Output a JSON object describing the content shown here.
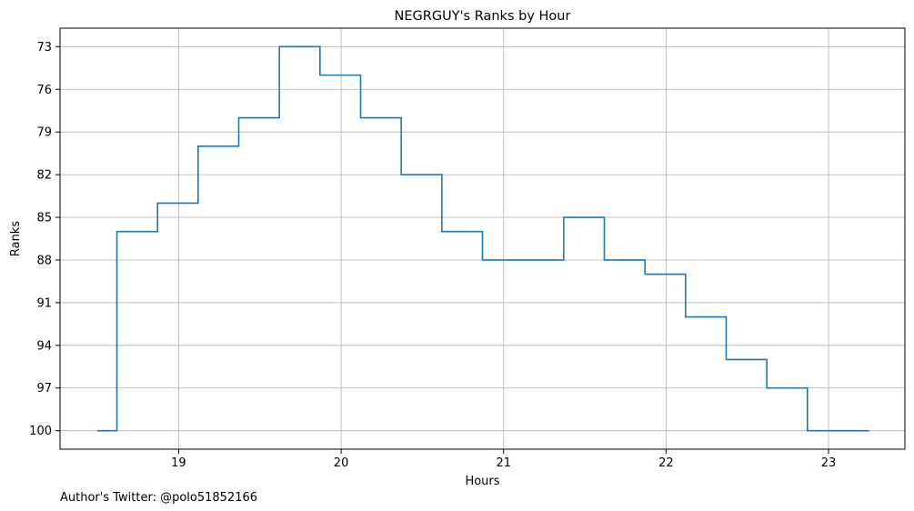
{
  "chart_data": {
    "type": "line",
    "step": "post",
    "title": "NEGRGUY's Ranks by Hour",
    "xlabel": "Hours",
    "ylabel": "Ranks",
    "xlim": [
      18.27,
      23.47
    ],
    "ylim": [
      101.3,
      71.7
    ],
    "y_inverted": true,
    "xticks": [
      19,
      20,
      21,
      22,
      23
    ],
    "yticks": [
      73,
      76,
      79,
      82,
      85,
      88,
      91,
      94,
      97,
      100
    ],
    "grid": true,
    "legend": "none",
    "series": [
      {
        "color": "#1f77b4",
        "points": [
          {
            "x": 18.5,
            "y": 100
          },
          {
            "x": 18.62,
            "y": 86
          },
          {
            "x": 18.87,
            "y": 84
          },
          {
            "x": 19.12,
            "y": 80
          },
          {
            "x": 19.37,
            "y": 78
          },
          {
            "x": 19.62,
            "y": 73
          },
          {
            "x": 19.87,
            "y": 75
          },
          {
            "x": 20.12,
            "y": 78
          },
          {
            "x": 20.37,
            "y": 82
          },
          {
            "x": 20.62,
            "y": 86
          },
          {
            "x": 20.87,
            "y": 88
          },
          {
            "x": 21.12,
            "y": 88
          },
          {
            "x": 21.37,
            "y": 85
          },
          {
            "x": 21.62,
            "y": 88
          },
          {
            "x": 21.87,
            "y": 89
          },
          {
            "x": 22.12,
            "y": 92
          },
          {
            "x": 22.37,
            "y": 95
          },
          {
            "x": 22.62,
            "y": 97
          },
          {
            "x": 22.87,
            "y": 100
          },
          {
            "x": 23.25,
            "y": 100
          }
        ]
      }
    ]
  },
  "footer": {
    "author": "Author's Twitter: @polo51852166"
  }
}
